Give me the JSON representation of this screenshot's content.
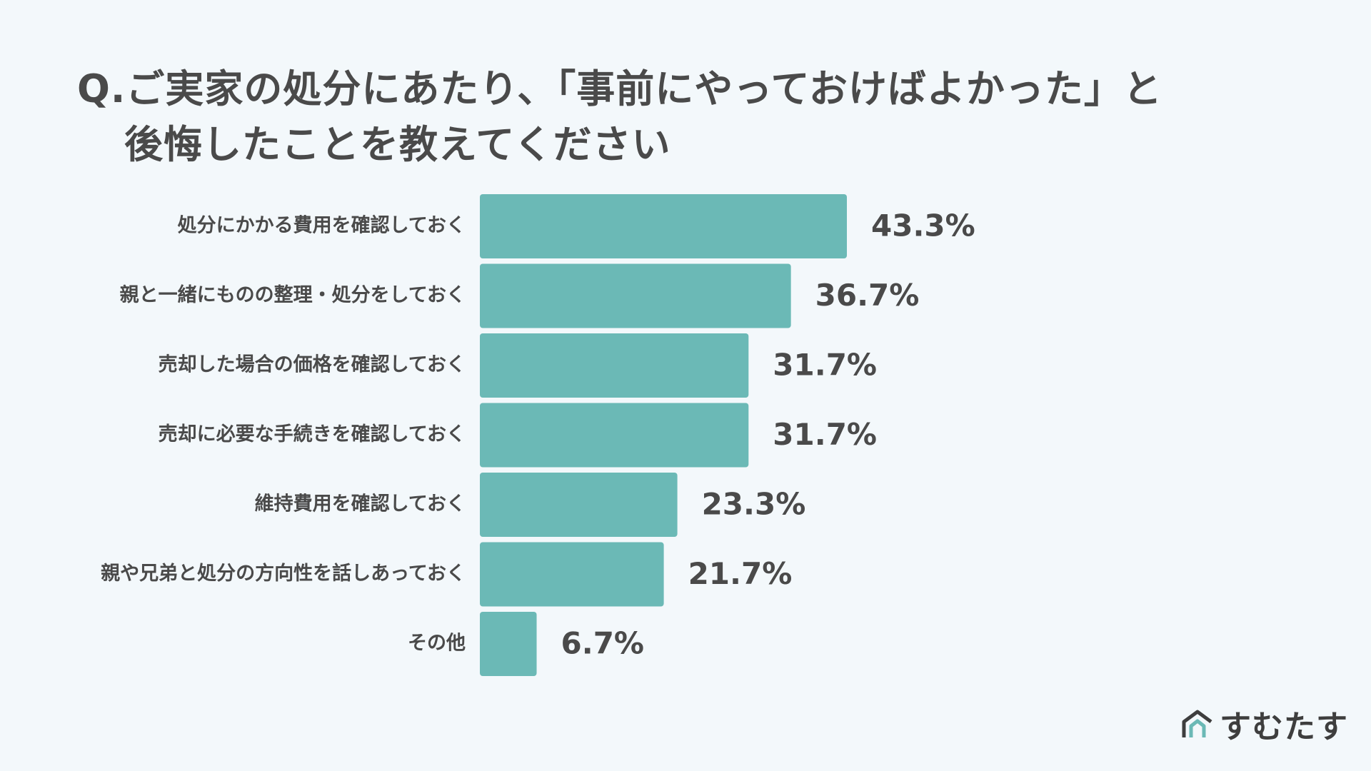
{
  "header": {
    "title_line1": "Q.ご実家の処分にあたり、「事前にやっておけばよかった」と",
    "title_line2": "後悔したことを教えてください"
  },
  "brand": {
    "logo_text": "すむたす",
    "logo_icon": "house-logo-icon"
  },
  "colors": {
    "bar": "#6bb9b6",
    "background": "#f3f8fb",
    "text": "#4a4a4a",
    "logo_accent": "#6bb9b6"
  },
  "chart_data": {
    "type": "bar",
    "orientation": "horizontal",
    "title": "Q.ご実家の処分にあたり、「事前にやっておけばよかった」と後悔したことを教えてください",
    "xlabel": "",
    "ylabel": "",
    "unit": "%",
    "xlim": [
      0,
      43.3
    ],
    "grid": false,
    "legend": "none",
    "categories": [
      "処分にかかる費用を確認しておく",
      "親と一緒にものの整理・処分をしておく",
      "売却した場合の価格を確認しておく",
      "売却に必要な手続きを確認しておく",
      "維持費用を確認しておく",
      "親や兄弟と処分の方向性を話しあっておく",
      "その他"
    ],
    "values": [
      43.3,
      36.7,
      31.7,
      31.7,
      23.3,
      21.7,
      6.7
    ],
    "value_labels": [
      "43.3%",
      "36.7%",
      "31.7%",
      "31.7%",
      "23.3%",
      "21.7%",
      "6.7%"
    ]
  }
}
